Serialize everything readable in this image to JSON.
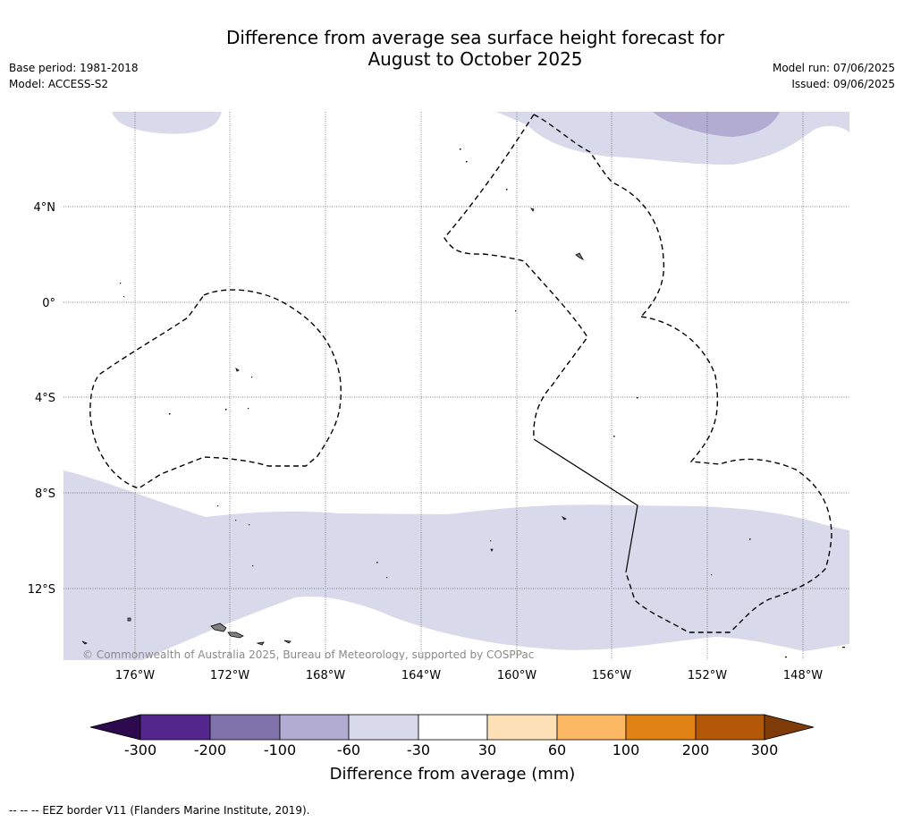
{
  "title_line1": "Difference from average sea surface height forecast for",
  "title_line2": "August to October 2025",
  "base_period": "Base period: 1981-2018",
  "model": "Model: ACCESS-S2",
  "model_run": "Model run: 07/06/2025",
  "issued": "Issued: 09/06/2025",
  "copyright": "© Commonwealth of Australia 2025, Bureau of Meteorology, supported by COSPPac",
  "footer": "--  --  -- EEZ border V11 (Flanders Marine Institute, 2019).",
  "lat_labels": [
    "4°N",
    "0°",
    "4°S",
    "8°S",
    "12°S"
  ],
  "lon_labels": [
    "176°W",
    "172°W",
    "168°W",
    "164°W",
    "160°W",
    "156°W",
    "152°W",
    "148°W"
  ],
  "colorbar": {
    "label": "Difference from average (mm)",
    "ticks": [
      "-300",
      "-200",
      "-100",
      "-60",
      "-30",
      "30",
      "60",
      "100",
      "200",
      "300"
    ],
    "colors": [
      "#2d0a4e",
      "#54278f",
      "#8073ac",
      "#b2abd2",
      "#d8daeb",
      "#ffffff",
      "#fee0b6",
      "#fdb863",
      "#e08214",
      "#b35806",
      "#7f3b08"
    ]
  },
  "colors": {
    "land": "#808080",
    "shade_light": "#d8daeb",
    "shade_mid": "#b2abd2"
  }
}
